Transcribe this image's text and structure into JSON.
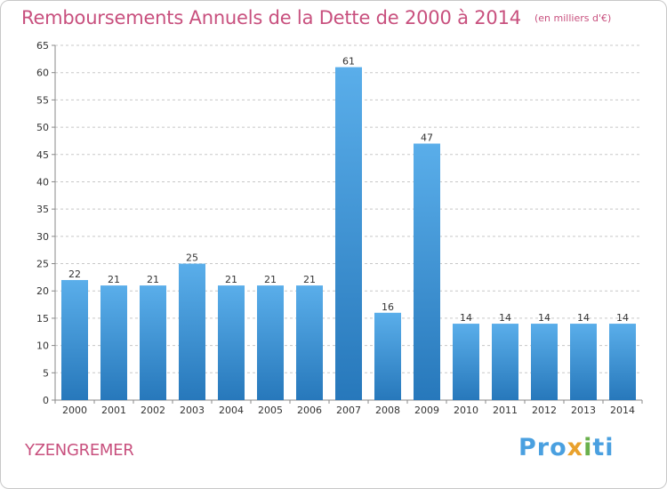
{
  "header": {
    "title": "Remboursements Annuels de la Dette de 2000 à 2014",
    "unit": "(en milliers d'€)"
  },
  "footer": {
    "commune": "YZENGREMER",
    "logo_text": "Proxiti"
  },
  "colors": {
    "title": "#c8507e",
    "bar_top": "#5aaeea",
    "bar_bottom": "#2778bb",
    "grid": "#c8c8c8",
    "axis_text": "#333333"
  },
  "chart_data": {
    "type": "bar",
    "title": "Remboursements Annuels de la Dette de 2000 à 2014",
    "subtitle": "(en milliers d'€)",
    "xlabel": "",
    "ylabel": "",
    "categories": [
      "2000",
      "2001",
      "2002",
      "2003",
      "2004",
      "2005",
      "2006",
      "2007",
      "2008",
      "2009",
      "2010",
      "2011",
      "2012",
      "2013",
      "2014"
    ],
    "values": [
      22,
      21,
      21,
      25,
      21,
      21,
      21,
      61,
      16,
      47,
      14,
      14,
      14,
      14,
      14
    ],
    "data_labels": [
      "22",
      "21",
      "21",
      "25",
      "21",
      "21",
      "21",
      "61",
      "16",
      "47",
      "14",
      "14",
      "14",
      "14",
      "14"
    ],
    "ylim": [
      0,
      65
    ],
    "yticks": [
      0,
      5,
      10,
      15,
      20,
      25,
      30,
      35,
      40,
      45,
      50,
      55,
      60,
      65
    ],
    "grid": "horizontal dashed",
    "legend": "none"
  }
}
